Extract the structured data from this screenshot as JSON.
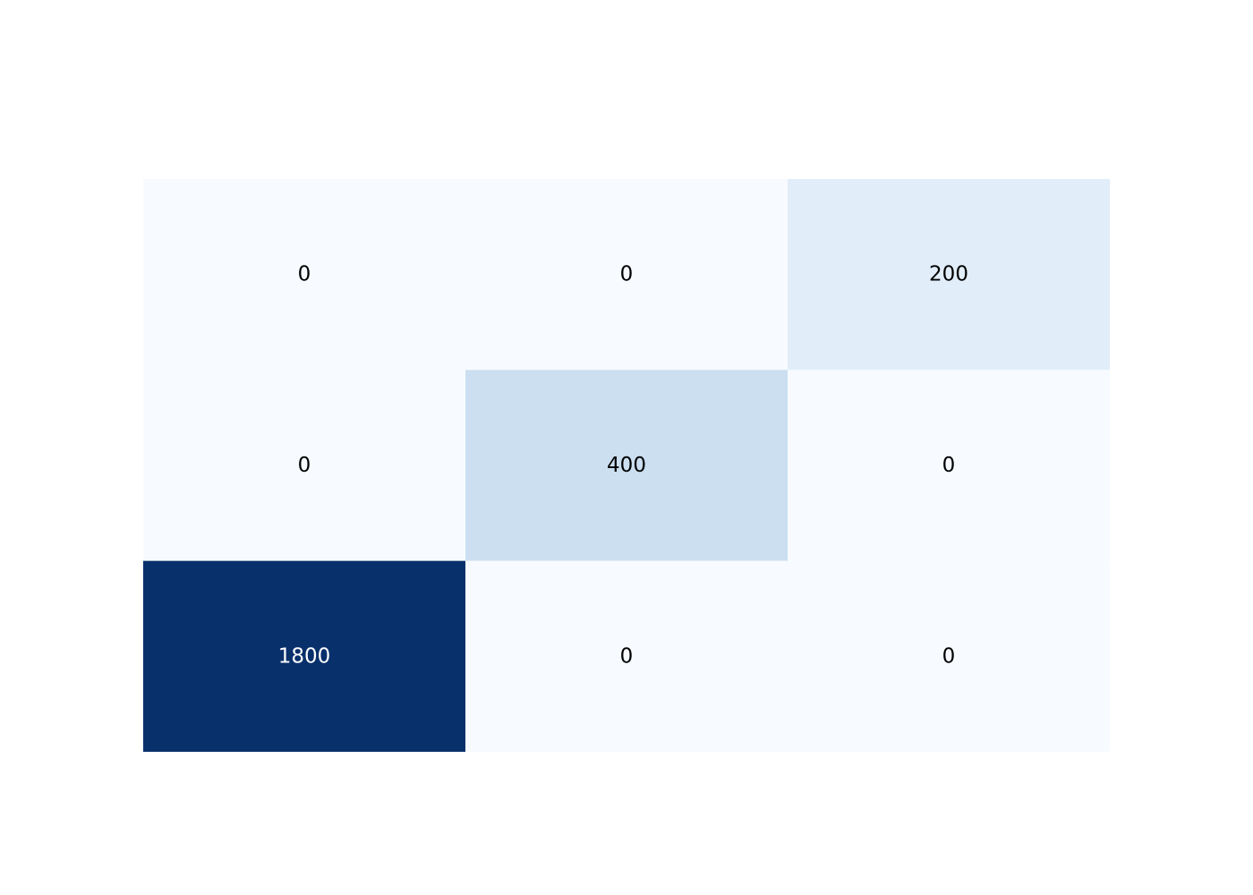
{
  "chart_data": {
    "type": "heatmap",
    "rows": 3,
    "columns": 3,
    "values": [
      [
        0,
        0,
        200
      ],
      [
        0,
        400,
        0
      ],
      [
        1800,
        0,
        0
      ]
    ],
    "value_labels": [
      [
        "0",
        "0",
        "200"
      ],
      [
        "0",
        "400",
        "0"
      ],
      [
        "1800",
        "0",
        "0"
      ]
    ],
    "color_scale": {
      "name": "Blues",
      "min": 0,
      "max": 1800,
      "stops": [
        "#f7fbff",
        "#deebf7",
        "#c6dbef",
        "#9ecae1",
        "#6baed6",
        "#4292c6",
        "#2171b5",
        "#08519c",
        "#08306b"
      ]
    },
    "text_color_dark": "#000000",
    "text_color_light": "#ffffff",
    "title": "",
    "xlabel": "",
    "ylabel": "",
    "legend": false,
    "grid": false
  }
}
